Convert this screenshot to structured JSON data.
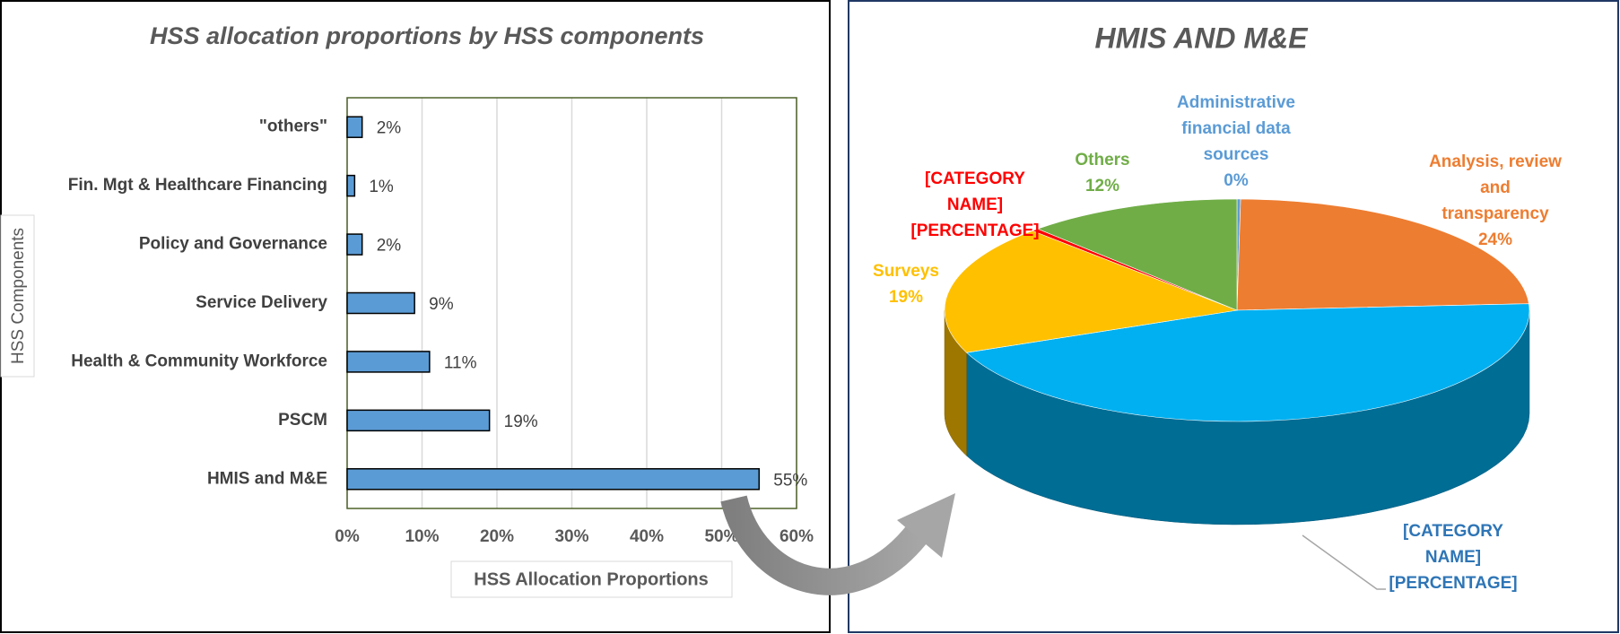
{
  "chart_data": [
    {
      "type": "bar",
      "title": "HSS allocation proportions by HSS components",
      "x_label": "HSS Allocation Proportions",
      "y_label": "HSS Components",
      "categories": [
        "\"others\"",
        "Fin. Mgt & Healthcare Financing",
        "Policy and Governance",
        "Service Delivery",
        "Health & Community Workforce",
        "PSCM",
        "HMIS and M&E"
      ],
      "values": [
        2,
        1,
        2,
        9,
        11,
        19,
        55
      ],
      "value_labels": [
        "2%",
        "1%",
        "2%",
        "9%",
        "11%",
        "19%",
        "55%"
      ],
      "color": "#5b9bd5",
      "xlim": [
        0,
        60
      ],
      "xticks": [
        {
          "value": 0,
          "label": "0%"
        },
        {
          "value": 10,
          "label": "10%"
        },
        {
          "value": 20,
          "label": "20%"
        },
        {
          "value": 30,
          "label": "30%"
        },
        {
          "value": 40,
          "label": "40%"
        },
        {
          "value": 50,
          "label": "50%"
        },
        {
          "value": 60,
          "label": "60%"
        }
      ],
      "grid": true
    },
    {
      "type": "pie",
      "title": "HMIS AND M&E",
      "categories": [
        "Administrative financial data sources",
        "Analysis, review and transparency",
        "[CATEGORY NAME]",
        "Surveys",
        "[CATEGORY NAME]",
        "Others"
      ],
      "values": [
        0.2,
        24,
        45,
        19,
        0.4,
        12
      ],
      "value_labels": [
        "0%",
        "24%",
        "[PERCENTAGE]",
        "19%",
        "[PERCENTAGE]",
        "12%"
      ],
      "colors": [
        "#5b9bd5",
        "#ed7d31",
        "#00b0f0",
        "#ffc000",
        "#ff0000",
        "#70ad47"
      ],
      "label_colors": [
        "#5b9bd5",
        "#ed7d31",
        "#2e75b6",
        "#ffc000",
        "#ff0000",
        "#70ad47"
      ]
    }
  ]
}
